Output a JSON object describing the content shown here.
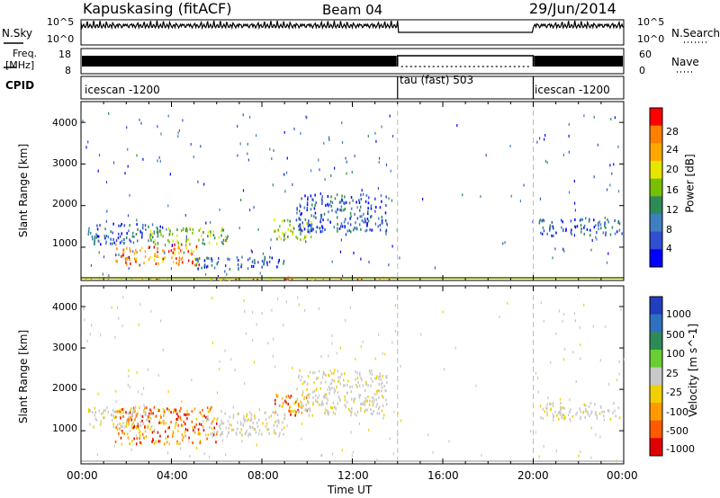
{
  "header": {
    "station": "Kapuskasing (fitACF)",
    "beam": "Beam 04",
    "date": "29/Jun/2014"
  },
  "noise_panel": {
    "left_label": "N.Sky",
    "left_ticks": [
      "10^5",
      "10^0"
    ],
    "right_label": "N.Search",
    "right_ticks": [
      "10^5",
      "10^0"
    ]
  },
  "freq_panel": {
    "left_label_1": "Freq.",
    "left_label_2": "[MHz]",
    "left_ticks": [
      "18",
      "8"
    ],
    "right_label": "Nave",
    "right_ticks": [
      "60",
      "0"
    ]
  },
  "cpid_panel": {
    "label": "CPID",
    "segments": [
      {
        "name": "icescan -1200",
        "start_hour": 0,
        "end_hour": 14.0
      },
      {
        "name": "tau (fast) 503",
        "start_hour": 14.0,
        "end_hour": 20.0
      },
      {
        "name": "icescan -1200",
        "start_hour": 20.0,
        "end_hour": 24.0
      }
    ]
  },
  "chart_data": [
    {
      "type": "heatmap",
      "name": "Power",
      "ylabel": "Slant Range [km]",
      "xlabel": "Time UT",
      "xlim": [
        0,
        24
      ],
      "ylim": [
        200,
        4500
      ],
      "y_ticks": [
        "1000",
        "2000",
        "3000",
        "4000"
      ],
      "x_ticks": [
        "00:00",
        "04:00",
        "08:00",
        "12:00",
        "16:00",
        "20:00",
        "00:00"
      ],
      "colorbar_label": "Power [dB]",
      "colorbar_ticks": [
        "28",
        "24",
        "20",
        "16",
        "12",
        "8",
        "4"
      ],
      "colorbar_colors": [
        "#ff0000",
        "#ff7f00",
        "#ffa700",
        "#e6e600",
        "#76c000",
        "#2e8b57",
        "#3f7fbf",
        "#3050d0",
        "#0000ff"
      ],
      "regions": [
        {
          "t0": 0.1,
          "t1": 13.8,
          "r0": 250,
          "r1": 300,
          "level": "high"
        },
        {
          "t0": 0.3,
          "t1": 3.5,
          "r0": 1100,
          "r1": 1600,
          "level": "low"
        },
        {
          "t0": 1.5,
          "t1": 5.2,
          "r0": 600,
          "r1": 1100,
          "level": "high"
        },
        {
          "t0": 3.0,
          "t1": 6.5,
          "r0": 1100,
          "r1": 1500,
          "level": "mid"
        },
        {
          "t0": 5.0,
          "t1": 9.0,
          "r0": 500,
          "r1": 800,
          "level": "low"
        },
        {
          "t0": 8.5,
          "t1": 10.2,
          "r0": 1200,
          "r1": 1700,
          "level": "mid"
        },
        {
          "t0": 9.5,
          "t1": 13.5,
          "r0": 1400,
          "r1": 2300,
          "level": "low"
        },
        {
          "t0": 20.2,
          "t1": 23.9,
          "r0": 1300,
          "r1": 1700,
          "level": "low"
        }
      ]
    },
    {
      "type": "heatmap",
      "name": "Velocity",
      "ylabel": "Slant Range [km]",
      "xlabel": "Time UT",
      "xlim": [
        0,
        24
      ],
      "ylim": [
        200,
        4500
      ],
      "y_ticks": [
        "1000",
        "2000",
        "3000",
        "4000"
      ],
      "x_ticks": [
        "00:00",
        "04:00",
        "08:00",
        "12:00",
        "16:00",
        "20:00",
        "00:00"
      ],
      "colorbar_label": "Velocity [m s^-1]",
      "colorbar_ticks": [
        "1000",
        "500",
        "100",
        "25",
        "-25",
        "-100",
        "-500",
        "-1000"
      ],
      "colorbar_colors": [
        "#1f3fbf",
        "#3070c0",
        "#2e8b57",
        "#6acd32",
        "#c8c8c8",
        "#f0d000",
        "#ff9a00",
        "#ff5a00",
        "#e00000"
      ],
      "regions": [
        {
          "t0": 0.3,
          "t1": 3.0,
          "r0": 1100,
          "r1": 1600,
          "level": "neutral"
        },
        {
          "t0": 1.5,
          "t1": 6.0,
          "r0": 700,
          "r1": 1600,
          "level": "negative"
        },
        {
          "t0": 5.5,
          "t1": 9.0,
          "r0": 900,
          "r1": 1500,
          "level": "neutral"
        },
        {
          "t0": 8.5,
          "t1": 10.0,
          "r0": 1400,
          "r1": 1900,
          "level": "negative"
        },
        {
          "t0": 9.5,
          "t1": 13.5,
          "r0": 1400,
          "r1": 2500,
          "level": "neutral"
        },
        {
          "t0": 20.2,
          "t1": 23.9,
          "r0": 1300,
          "r1": 1700,
          "level": "neutral"
        }
      ]
    }
  ]
}
